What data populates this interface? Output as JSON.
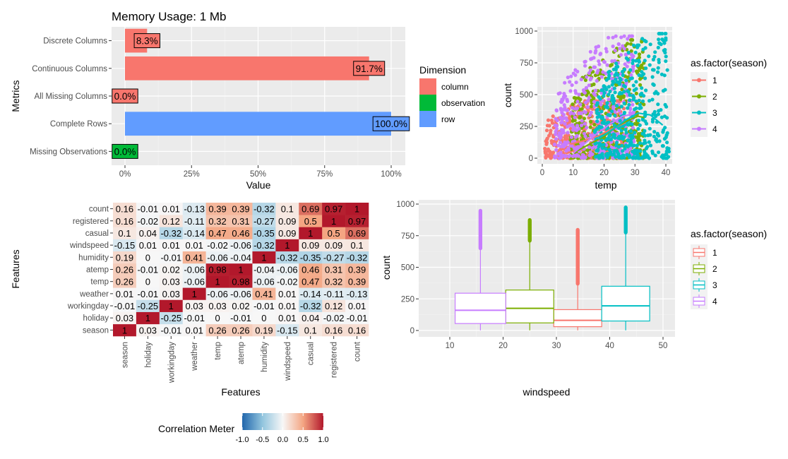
{
  "colors": {
    "season1": "#F8766D",
    "season2": "#7CAE00",
    "season3": "#00BFC4",
    "season4": "#C77CFF",
    "dim_column": "#F8766D",
    "dim_observation": "#00BA38",
    "dim_row": "#619CFF",
    "corr_low": "#2166AC",
    "corr_mid": "#F7F7F7",
    "corr_high": "#B2182B",
    "panel_bg": "#EBEBEB"
  },
  "chart_data": [
    {
      "id": "memory",
      "type": "bar",
      "orientation": "horizontal",
      "title": "Memory Usage: 1 Mb",
      "xlabel": "Value",
      "ylabel": "Metrics",
      "xlim": [
        0,
        1
      ],
      "xticks": [
        "0%",
        "25%",
        "50%",
        "75%",
        "100%"
      ],
      "grid": true,
      "categories": [
        "Discrete Columns",
        "Continuous Columns",
        "All Missing Columns",
        "Complete Rows",
        "Missing Observations"
      ],
      "values": [
        0.083,
        0.917,
        0.0,
        1.0,
        0.0
      ],
      "labels": [
        "8.3%",
        "91.7%",
        "0.0%",
        "100.0%",
        "0.0%"
      ],
      "dimension": [
        "column",
        "column",
        "column",
        "row",
        "observation"
      ],
      "legend": {
        "title": "Dimension",
        "items": [
          "column",
          "observation",
          "row"
        ],
        "position": "right"
      }
    },
    {
      "id": "scatter",
      "type": "scatter",
      "xlabel": "temp",
      "ylabel": "count",
      "xlim": [
        0,
        41
      ],
      "ylim": [
        0,
        1000
      ],
      "xticks": [
        "0",
        "10",
        "20",
        "30",
        "40"
      ],
      "yticks": [
        "0",
        "250",
        "500",
        "750",
        "1000"
      ],
      "legend": {
        "title": "as.factor(season)",
        "items": [
          "1",
          "2",
          "3",
          "4"
        ],
        "position": "right"
      },
      "series": [
        {
          "name": "1",
          "temp_range": [
            0.8,
            27
          ],
          "typical_max": 450,
          "smooth": [
            [
              9,
              110
            ],
            [
              14,
              140
            ],
            [
              18,
              175
            ],
            [
              22,
              225
            ],
            [
              27,
              280
            ]
          ]
        },
        {
          "name": "2",
          "temp_range": [
            9,
            33
          ],
          "typical_max": 930,
          "smooth": [
            [
              10,
              40
            ],
            [
              16,
              120
            ],
            [
              20,
              170
            ],
            [
              24,
              250
            ],
            [
              28,
              300
            ],
            [
              31,
              330
            ],
            [
              33,
              320
            ]
          ]
        },
        {
          "name": "3",
          "temp_range": [
            17,
            41
          ],
          "typical_max": 980,
          "smooth": [
            [
              18,
              150
            ],
            [
              23,
              230
            ],
            [
              27,
              300
            ],
            [
              31,
              355
            ],
            [
              35,
              340
            ],
            [
              39,
              260
            ]
          ]
        },
        {
          "name": "4",
          "temp_range": [
            4,
            30
          ],
          "typical_max": 960,
          "smooth": [
            [
              10,
              40
            ],
            [
              14,
              120
            ],
            [
              18,
              200
            ],
            [
              22,
              270
            ],
            [
              26,
              330
            ],
            [
              30,
              350
            ]
          ]
        }
      ]
    },
    {
      "id": "heatmap",
      "type": "heatmap",
      "xlabel": "Features",
      "ylabel": "Features",
      "variables": [
        "season",
        "holiday",
        "workingday",
        "weather",
        "temp",
        "atemp",
        "humidity",
        "windspeed",
        "casual",
        "registered",
        "count"
      ],
      "matrix": [
        [
          1,
          0.03,
          -0.01,
          0.01,
          0.26,
          0.26,
          0.19,
          -0.15,
          0.1,
          0.16,
          0.16
        ],
        [
          0.03,
          1,
          -0.25,
          -0.01,
          0,
          -0.01,
          0,
          0.01,
          0.04,
          -0.02,
          -0.01
        ],
        [
          -0.01,
          -0.25,
          1,
          0.03,
          0.03,
          0.02,
          -0.01,
          0.01,
          -0.32,
          0.12,
          0.01
        ],
        [
          0.01,
          -0.01,
          0.03,
          1,
          -0.06,
          -0.06,
          0.41,
          0.01,
          -0.14,
          -0.11,
          -0.13
        ],
        [
          0.26,
          0,
          0.03,
          -0.06,
          1,
          0.98,
          -0.06,
          -0.02,
          0.47,
          0.32,
          0.39
        ],
        [
          0.26,
          -0.01,
          0.02,
          -0.06,
          0.98,
          1,
          -0.04,
          -0.06,
          0.46,
          0.31,
          0.39
        ],
        [
          0.19,
          0,
          -0.01,
          0.41,
          -0.06,
          -0.04,
          1,
          -0.32,
          -0.35,
          -0.27,
          -0.32
        ],
        [
          -0.15,
          0.01,
          0.01,
          0.01,
          -0.02,
          -0.06,
          -0.32,
          1,
          0.09,
          0.09,
          0.1
        ],
        [
          0.1,
          0.04,
          -0.32,
          -0.14,
          0.47,
          0.46,
          -0.35,
          0.09,
          1,
          0.5,
          0.69
        ],
        [
          0.16,
          -0.02,
          0.12,
          -0.11,
          0.32,
          0.31,
          -0.27,
          0.09,
          0.5,
          1,
          0.97
        ],
        [
          0.16,
          -0.01,
          0.01,
          -0.13,
          0.39,
          0.39,
          -0.32,
          0.1,
          0.69,
          0.97,
          1
        ]
      ],
      "legend": {
        "title": "Correlation Meter",
        "ticks": [
          "-1.0",
          "-0.5",
          "0.0",
          "0.5",
          "1.0"
        ],
        "range": [
          -1,
          1
        ],
        "position": "bottom"
      }
    },
    {
      "id": "boxplot",
      "type": "box",
      "xlabel": "windspeed",
      "ylabel": "count",
      "xlim": [
        5,
        52
      ],
      "ylim": [
        0,
        1000
      ],
      "xticks": [
        "10",
        "20",
        "30",
        "40",
        "50"
      ],
      "yticks": [
        "0",
        "250",
        "500",
        "750",
        "1000"
      ],
      "legend": {
        "title": "as.factor(season)",
        "items": [
          "1",
          "2",
          "3",
          "4"
        ],
        "position": "right"
      },
      "series": [
        {
          "name": "1",
          "x": [
            29.5,
            38.5
          ],
          "q1": 30,
          "median": 80,
          "q3": 165,
          "whisker_low": 1,
          "whisker_high": 365,
          "outliers": [
            370,
            800
          ]
        },
        {
          "name": "2",
          "x": [
            20.5,
            29.5
          ],
          "q1": 60,
          "median": 175,
          "q3": 320,
          "whisker_low": 1,
          "whisker_high": 700,
          "outliers": [
            710,
            875
          ]
        },
        {
          "name": "3",
          "x": [
            38.5,
            47.5
          ],
          "q1": 75,
          "median": 195,
          "q3": 350,
          "whisker_low": 1,
          "whisker_high": 765,
          "outliers": [
            775,
            975
          ]
        },
        {
          "name": "4",
          "x": [
            11,
            20.5
          ],
          "q1": 55,
          "median": 160,
          "q3": 295,
          "whisker_low": 1,
          "whisker_high": 640,
          "outliers": [
            650,
            950
          ]
        }
      ]
    }
  ]
}
